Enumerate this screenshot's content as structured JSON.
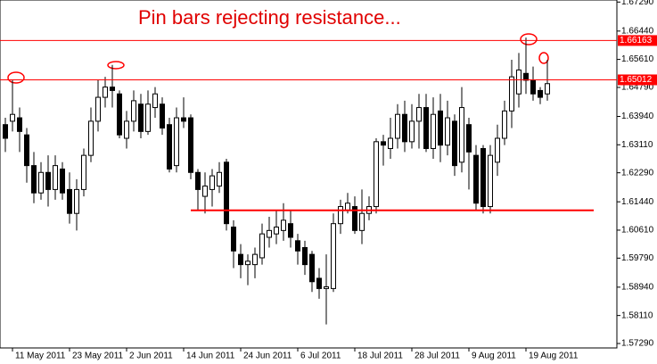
{
  "chart_data": {
    "type": "candlestick",
    "title": "Pin bars rejecting resistance...",
    "categories": [
      null,
      "11 May 2011",
      null,
      null,
      null,
      null,
      null,
      null,
      null,
      "23 May 2011",
      null,
      null,
      null,
      null,
      null,
      null,
      null,
      "2 Jun 2011",
      null,
      null,
      null,
      null,
      null,
      null,
      null,
      "14 Jun 2011",
      null,
      null,
      null,
      null,
      null,
      null,
      null,
      "24 Jun 2011",
      null,
      null,
      null,
      null,
      null,
      null,
      null,
      "6 Jul 2011",
      null,
      null,
      null,
      null,
      null,
      null,
      null,
      "18 Jul 2011",
      null,
      null,
      null,
      null,
      null,
      null,
      null,
      "28 Jul 2011",
      null,
      null,
      null,
      null,
      null,
      null,
      null,
      "9 Aug 2011",
      null,
      null,
      null,
      null,
      null,
      null,
      null,
      "19 Aug 2011",
      null,
      null,
      null
    ],
    "open": [
      1.637,
      1.638,
      1.639,
      1.634,
      1.625,
      1.617,
      1.623,
      1.618,
      1.624,
      1.618,
      1.611,
      1.618,
      1.628,
      1.638,
      1.645,
      1.648,
      1.646,
      1.633,
      1.638,
      1.643,
      1.635,
      1.642,
      1.643,
      1.637,
      1.625,
      1.639,
      1.639,
      1.623,
      1.616,
      1.618,
      1.619,
      1.626,
      1.607,
      1.599,
      1.596,
      1.596,
      1.598,
      1.604,
      1.605,
      1.606,
      1.608,
      1.603,
      1.601,
      1.599,
      1.592,
      1.589,
      1.589,
      1.608,
      1.612,
      1.613,
      1.606,
      1.611,
      1.613,
      1.632,
      1.63,
      1.633,
      1.64,
      1.632,
      1.638,
      1.642,
      1.63,
      1.641,
      1.631,
      1.638,
      1.626,
      1.637,
      1.628,
      1.63,
      1.613,
      1.626,
      1.633,
      1.641,
      1.646,
      1.652,
      1.65,
      1.647,
      1.646
    ],
    "high": [
      1.639,
      1.65,
      1.642,
      1.636,
      1.629,
      1.626,
      1.628,
      1.628,
      1.626,
      1.623,
      1.621,
      1.63,
      1.642,
      1.65,
      1.651,
      1.6545,
      1.647,
      1.641,
      1.647,
      1.646,
      1.647,
      1.648,
      1.645,
      1.639,
      1.642,
      1.645,
      1.64,
      1.624,
      1.623,
      1.624,
      1.626,
      1.627,
      1.609,
      1.602,
      1.599,
      1.601,
      1.608,
      1.61,
      1.612,
      1.614,
      1.612,
      1.605,
      1.603,
      1.6,
      1.595,
      1.599,
      1.611,
      1.615,
      1.617,
      1.616,
      1.618,
      1.616,
      1.633,
      1.634,
      1.639,
      1.643,
      1.644,
      1.643,
      1.646,
      1.646,
      1.645,
      1.646,
      1.644,
      1.64,
      1.648,
      1.639,
      1.631,
      1.631,
      1.631,
      1.637,
      1.644,
      1.656,
      1.658,
      1.6625,
      1.654,
      1.648,
      1.656
    ],
    "low": [
      1.629,
      1.635,
      1.629,
      1.62,
      1.614,
      1.615,
      1.613,
      1.615,
      1.615,
      1.608,
      1.606,
      1.616,
      1.626,
      1.635,
      1.642,
      1.642,
      1.633,
      1.63,
      1.635,
      1.633,
      1.634,
      1.639,
      1.634,
      1.623,
      1.623,
      1.636,
      1.621,
      1.612,
      1.611,
      1.613,
      1.617,
      1.606,
      1.595,
      1.592,
      1.59,
      1.592,
      1.596,
      1.601,
      1.602,
      1.603,
      1.601,
      1.596,
      1.593,
      1.588,
      1.586,
      1.5785,
      1.588,
      1.605,
      1.611,
      1.605,
      1.602,
      1.609,
      1.611,
      1.625,
      1.627,
      1.63,
      1.629,
      1.63,
      1.63,
      1.629,
      1.627,
      1.626,
      1.628,
      1.622,
      1.623,
      1.618,
      1.612,
      1.611,
      1.611,
      1.622,
      1.631,
      1.636,
      1.642,
      1.646,
      1.644,
      1.643,
      1.644
    ],
    "close": [
      1.633,
      1.64,
      1.635,
      1.625,
      1.617,
      1.623,
      1.618,
      1.625,
      1.617,
      1.611,
      1.618,
      1.628,
      1.638,
      1.645,
      1.648,
      1.647,
      1.634,
      1.638,
      1.644,
      1.635,
      1.643,
      1.646,
      1.636,
      1.624,
      1.639,
      1.638,
      1.623,
      1.618,
      1.619,
      1.622,
      1.623,
      1.608,
      1.6,
      1.596,
      1.597,
      1.599,
      1.605,
      1.606,
      1.607,
      1.609,
      1.604,
      1.6,
      1.596,
      1.591,
      1.589,
      1.5895,
      1.608,
      1.613,
      1.614,
      1.606,
      1.611,
      1.613,
      1.632,
      1.631,
      1.633,
      1.64,
      1.632,
      1.638,
      1.642,
      1.63,
      1.64,
      1.631,
      1.639,
      1.625,
      1.642,
      1.629,
      1.614,
      1.613,
      1.628,
      1.633,
      1.641,
      1.651,
      1.653,
      1.65,
      1.646,
      1.645,
      1.649
    ],
    "ylim": [
      1.5716,
      1.6735
    ],
    "yticks": [
      {
        "value": 1.5729,
        "label": "1.57290"
      },
      {
        "value": 1.5811,
        "label": "1.58110"
      },
      {
        "value": 1.5894,
        "label": "1.58940"
      },
      {
        "value": 1.5979,
        "label": "1.59790"
      },
      {
        "value": 1.6061,
        "label": "1.60610"
      },
      {
        "value": 1.6144,
        "label": "1.61440"
      },
      {
        "value": 1.6229,
        "label": "1.62290"
      },
      {
        "value": 1.6311,
        "label": "1.63110"
      },
      {
        "value": 1.6394,
        "label": "1.63940"
      },
      {
        "value": 1.6479,
        "label": "1.64790"
      },
      {
        "value": 1.6561,
        "label": "1.65610"
      },
      {
        "value": 1.6644,
        "label": "1.66440"
      },
      {
        "value": 1.6729,
        "label": "1.67290"
      }
    ],
    "levels": [
      {
        "value": 1.66163,
        "label": "1.66163"
      },
      {
        "value": 1.65012,
        "label": "1.65012"
      }
    ],
    "support": 1.6119,
    "color": "#ff0000"
  }
}
